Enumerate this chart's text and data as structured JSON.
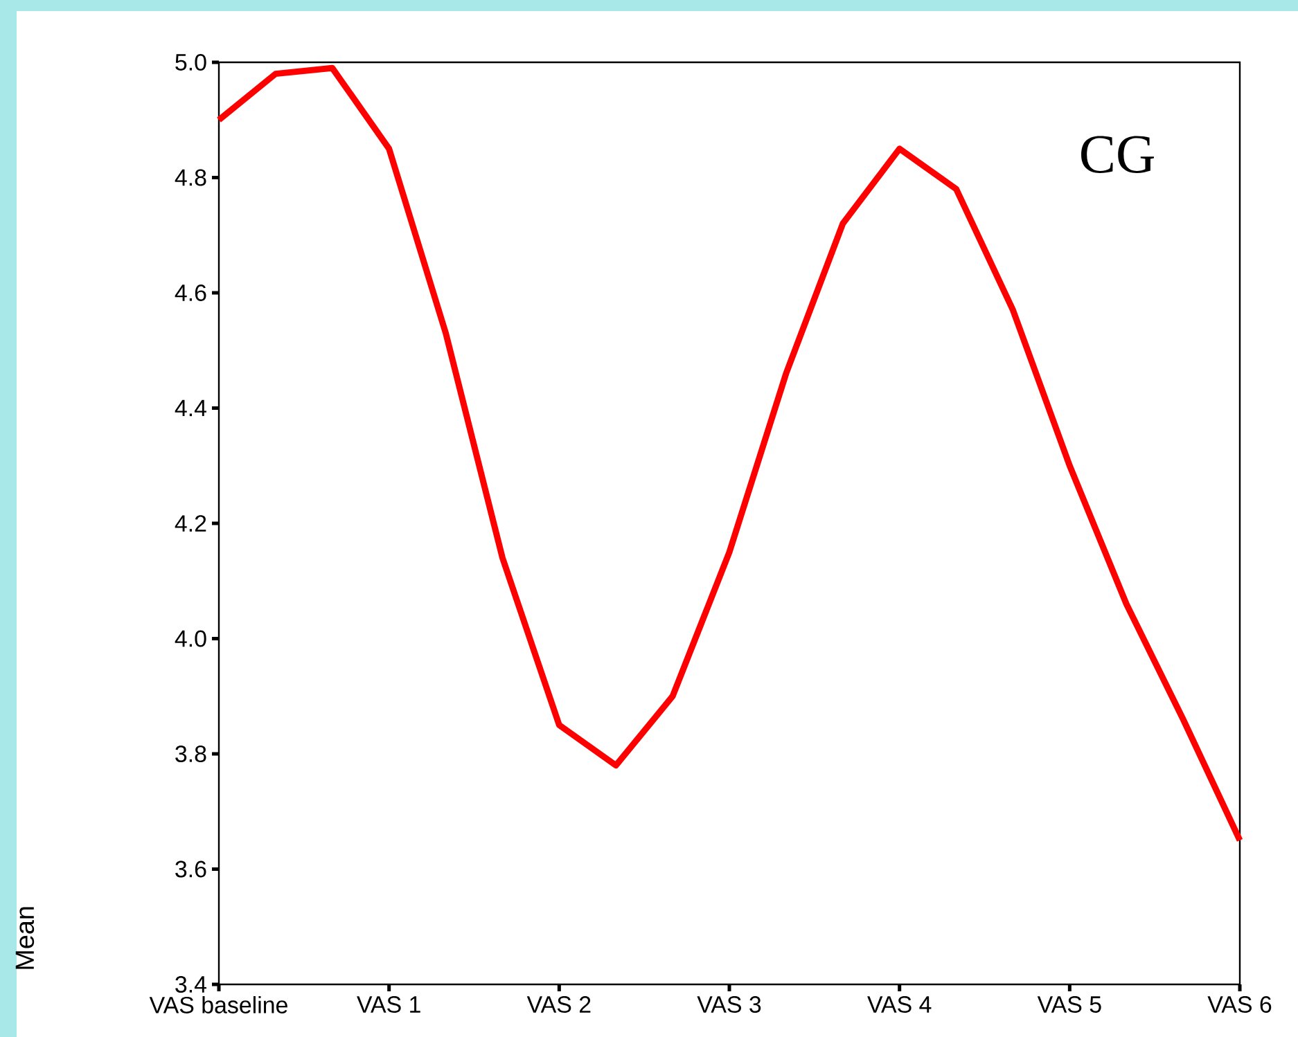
{
  "chart_data": {
    "type": "line",
    "ylabel": "Mean",
    "annotations": [
      "CG"
    ],
    "categories": [
      "VAS baseline",
      null,
      null,
      "VAS 1",
      null,
      null,
      "VAS 2",
      null,
      null,
      "VAS 3",
      null,
      null,
      "VAS 4",
      null,
      null,
      "VAS 5",
      null,
      null,
      "VAS 6"
    ],
    "series": [
      {
        "color": "#ff0000",
        "values": [
          4.9,
          4.98,
          4.99,
          4.85,
          4.53,
          4.14,
          3.85,
          3.78,
          3.9,
          4.15,
          4.46,
          4.72,
          4.85,
          4.78,
          4.57,
          4.3,
          4.06,
          3.86,
          3.65
        ]
      }
    ],
    "ylim": [
      3.4,
      5.0
    ],
    "yticks": [
      {
        "value": 3.4,
        "label": "3.4"
      },
      {
        "value": 3.6,
        "label": "3.6"
      },
      {
        "value": 3.8,
        "label": "3.8"
      },
      {
        "value": 4.0,
        "label": "4.0"
      },
      {
        "value": 4.2,
        "label": "4.2"
      },
      {
        "value": 4.4,
        "label": "4.4"
      },
      {
        "value": 4.6,
        "label": "4.6"
      },
      {
        "value": 4.8,
        "label": "4.8"
      },
      {
        "value": 5.0,
        "label": "5.0"
      }
    ],
    "marker": "none",
    "line_style": "solid"
  }
}
